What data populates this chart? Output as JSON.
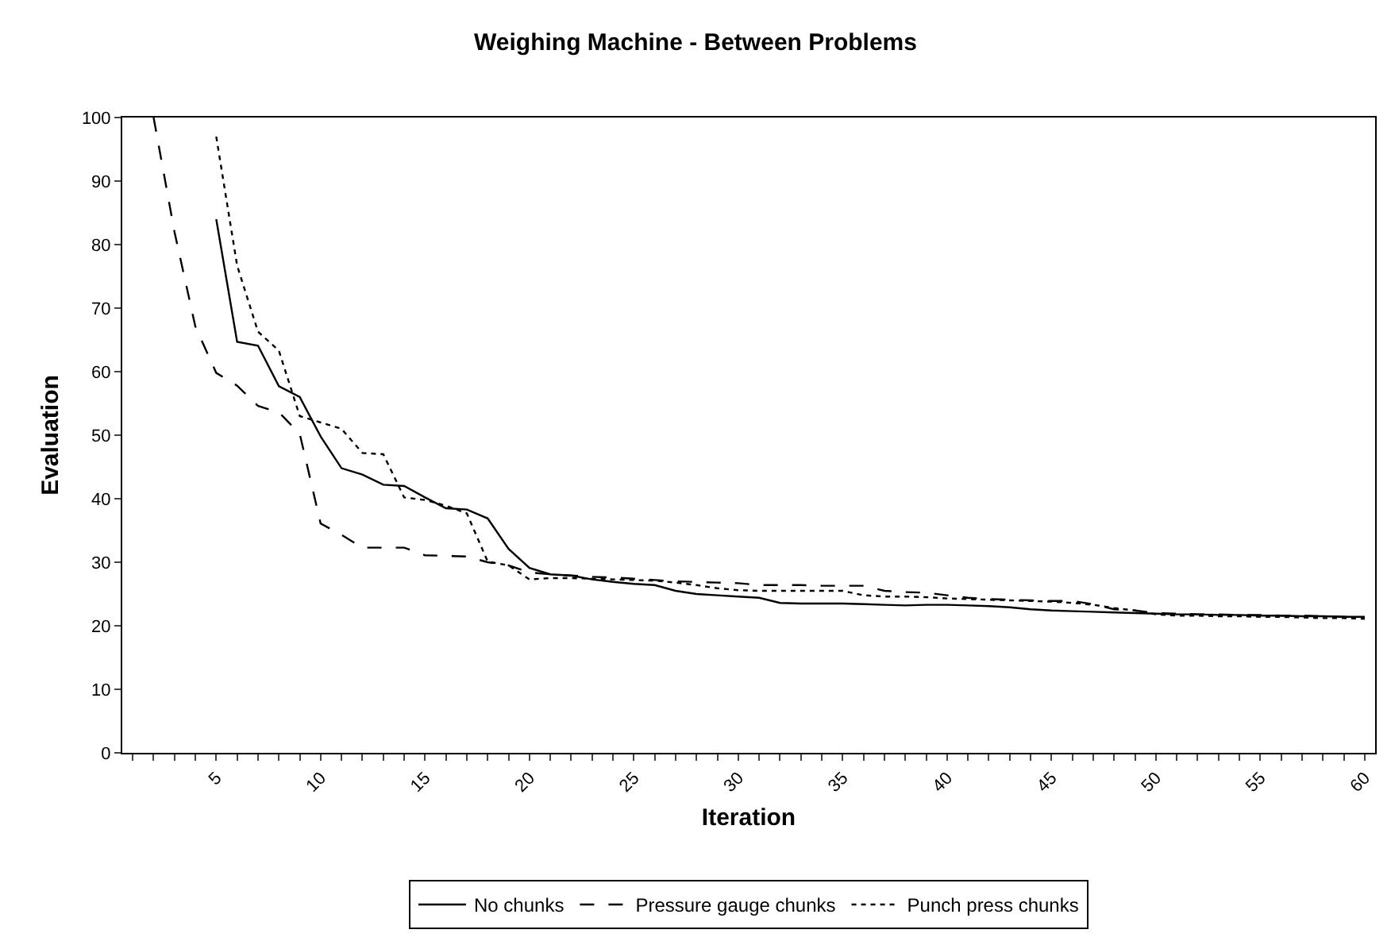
{
  "chart_data": {
    "type": "line",
    "title": "Weighing Machine - Between Problems",
    "xlabel": "Iteration",
    "ylabel": "Evaluation",
    "categories": [
      null,
      null,
      null,
      null,
      "5",
      null,
      null,
      null,
      null,
      "10",
      null,
      null,
      null,
      null,
      "15",
      null,
      null,
      null,
      null,
      "20",
      null,
      null,
      null,
      null,
      "25",
      null,
      null,
      null,
      null,
      "30",
      null,
      null,
      null,
      null,
      "35",
      null,
      null,
      null,
      null,
      "40",
      null,
      null,
      null,
      null,
      "45",
      null,
      null,
      null,
      null,
      "50",
      null,
      null,
      null,
      null,
      "55",
      null,
      null,
      null,
      null,
      "60"
    ],
    "series": [
      {
        "name": "No chunks",
        "color": "#000000",
        "line_style": "solid",
        "values": [
          null,
          null,
          null,
          null,
          84,
          64.7,
          64.1,
          57.7,
          56.0,
          49.8,
          44.8,
          43.8,
          42.2,
          42.0,
          40.2,
          38.5,
          38.3,
          36.9,
          32.1,
          29.1,
          28.1,
          27.9,
          27.3,
          26.9,
          26.6,
          26.4,
          25.5,
          25.0,
          24.8,
          24.6,
          24.4,
          23.6,
          23.5,
          23.5,
          23.5,
          23.4,
          23.3,
          23.2,
          23.3,
          23.3,
          23.2,
          23.1,
          22.9,
          22.6,
          22.4,
          22.3,
          22.2,
          22.1,
          22.0,
          21.9,
          21.8,
          21.8,
          21.7,
          21.7,
          21.6,
          21.6,
          21.5,
          21.5,
          21.4,
          21.4
        ]
      },
      {
        "name": "Pressure gauge chunks",
        "color": "#000000",
        "line_style": "dashed",
        "values": [
          null,
          100,
          82,
          67.1,
          59.8,
          57.8,
          54.6,
          53.6,
          50.2,
          36.1,
          34.3,
          32.3,
          32.3,
          32.3,
          31.1,
          31.0,
          30.9,
          30.0,
          29.5,
          28.4,
          28.1,
          27.9,
          27.7,
          27.6,
          27.4,
          27.2,
          27.0,
          26.9,
          26.8,
          26.7,
          26.4,
          26.4,
          26.4,
          26.3,
          26.3,
          26.3,
          25.5,
          25.3,
          25.2,
          24.8,
          24.4,
          24.2,
          24.1,
          24.0,
          23.9,
          23.9,
          23.4,
          22.6,
          22.4,
          22.0,
          21.9,
          21.8,
          21.8,
          21.7,
          21.7,
          21.6,
          21.6,
          21.5,
          21.4,
          21.3
        ]
      },
      {
        "name": "Punch press chunks",
        "color": "#000000",
        "line_style": "dotted",
        "values": [
          null,
          null,
          null,
          null,
          97,
          76.7,
          66.3,
          63.3,
          53.0,
          52.0,
          51.0,
          47.2,
          47.0,
          40.2,
          39.8,
          38.9,
          37.7,
          30.1,
          29.5,
          27.3,
          27.5,
          27.5,
          27.4,
          27.3,
          27.2,
          27.1,
          26.8,
          26.4,
          25.9,
          25.6,
          25.5,
          25.5,
          25.5,
          25.5,
          25.5,
          24.8,
          24.6,
          24.6,
          24.5,
          24.3,
          24.2,
          24.1,
          24.0,
          23.9,
          23.8,
          23.6,
          23.3,
          22.8,
          22.4,
          21.8,
          21.6,
          21.6,
          21.5,
          21.5,
          21.4,
          21.4,
          21.3,
          21.2,
          21.2,
          21.1
        ]
      }
    ],
    "ylim": [
      0,
      100
    ],
    "yticks": [
      0,
      10,
      20,
      30,
      40,
      50,
      60,
      70,
      80,
      90,
      100
    ],
    "legend": "bottom",
    "marker": "none"
  }
}
